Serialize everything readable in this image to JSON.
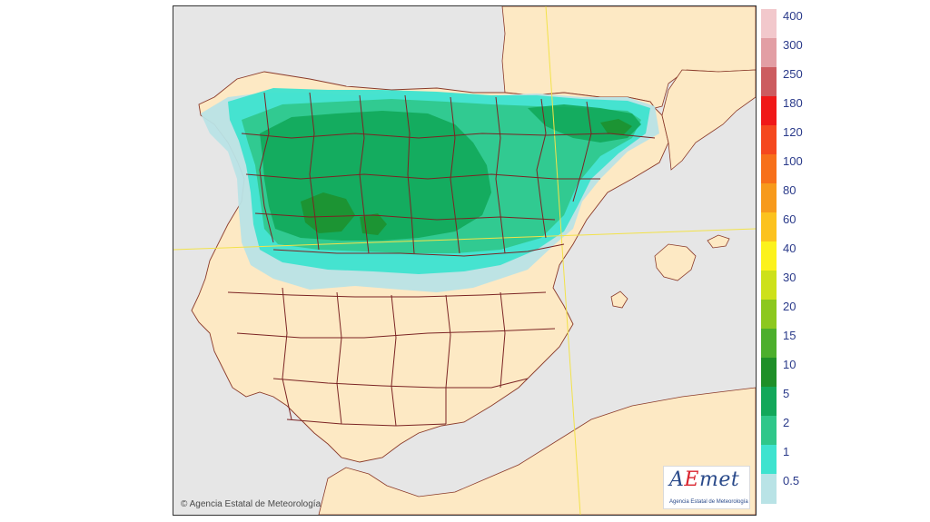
{
  "map": {
    "copyright": "Agencia Estatal de Meteorología",
    "copyright_symbol": "©",
    "logo_text_prefix": "A",
    "logo_text_accent": "E",
    "logo_text_suffix": "met",
    "logo_subtitle": "Agencia Estatal de Meteorología",
    "colors": {
      "sea": "#e6e6e6",
      "land": "#fde9c4",
      "borders": "#7b2424",
      "graticule": "#f2e24a"
    }
  },
  "legend": {
    "items": [
      {
        "label": "400",
        "color": "#f2c8cc"
      },
      {
        "label": "300",
        "color": "#e29ea4"
      },
      {
        "label": "250",
        "color": "#cc5c60"
      },
      {
        "label": "180",
        "color": "#f01818"
      },
      {
        "label": "120",
        "color": "#f5481e"
      },
      {
        "label": "100",
        "color": "#f7701a"
      },
      {
        "label": "80",
        "color": "#f79a1c"
      },
      {
        "label": "60",
        "color": "#fcc21e"
      },
      {
        "label": "40",
        "color": "#fcf21c"
      },
      {
        "label": "30",
        "color": "#cde11a"
      },
      {
        "label": "20",
        "color": "#8cc81e"
      },
      {
        "label": "15",
        "color": "#4caf2c"
      },
      {
        "label": "10",
        "color": "#1e8f28"
      },
      {
        "label": "5",
        "color": "#12a85a"
      },
      {
        "label": "2",
        "color": "#2fc78a"
      },
      {
        "label": "1",
        "color": "#3ee3cf"
      },
      {
        "label": "0.5",
        "color": "#b9e3e6"
      }
    ]
  }
}
